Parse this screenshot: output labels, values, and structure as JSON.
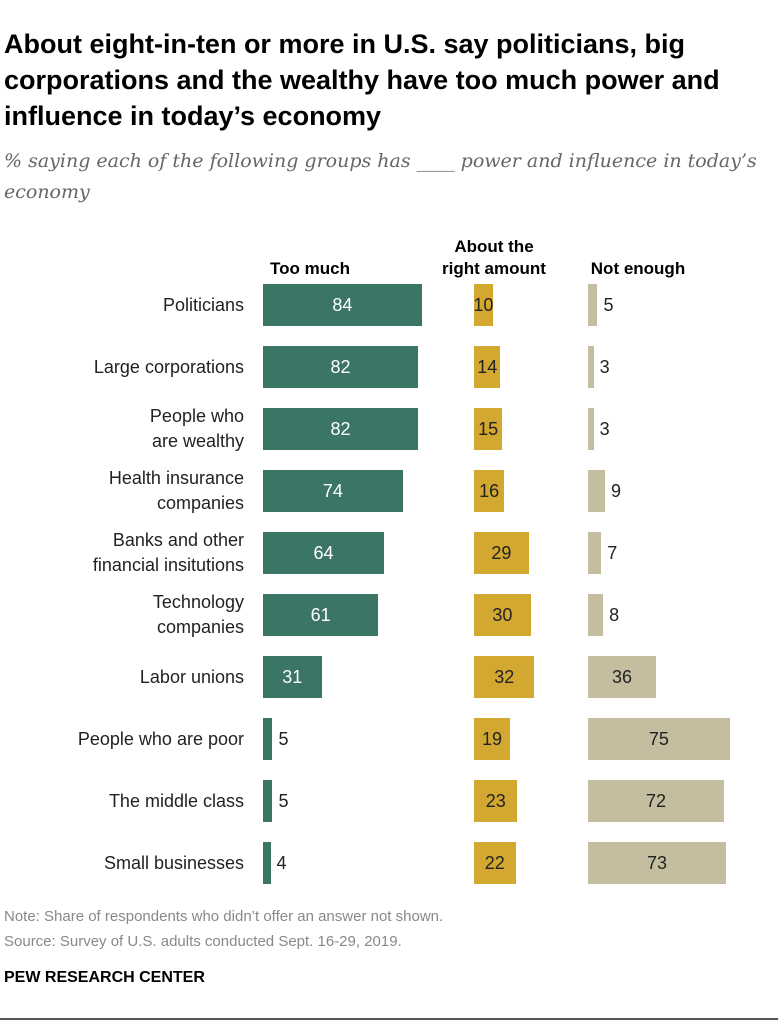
{
  "chart_data": {
    "type": "bar",
    "title": "About eight-in-ten or more in U.S. say politicians, big corporations and the wealthy have too much power and influence in today’s economy",
    "subtitle": "% saying each of the following groups has ____ power and influence in today’s economy",
    "categories": [
      "Politicians",
      "Large corporations",
      "People who are wealthy",
      "Health insurance companies",
      "Banks and other financial insitutions",
      "Technology companies",
      "Labor unions",
      "People who are poor",
      "The middle class",
      "Small businesses"
    ],
    "category_lines": [
      [
        "Politicians"
      ],
      [
        "Large corporations"
      ],
      [
        "People who",
        "are wealthy"
      ],
      [
        "Health insurance",
        "companies"
      ],
      [
        "Banks and other",
        "financial insitutions"
      ],
      [
        "Technology",
        "companies"
      ],
      [
        "Labor unions"
      ],
      [
        "People who are poor"
      ],
      [
        "The middle class"
      ],
      [
        "Small businesses"
      ]
    ],
    "series": [
      {
        "name": "Too much",
        "name_lines": [
          "Too much"
        ],
        "color": "#3a7565",
        "values": [
          84,
          82,
          82,
          74,
          64,
          61,
          31,
          5,
          5,
          4
        ]
      },
      {
        "name": "About the right amount",
        "name_lines": [
          "About the",
          "right amount"
        ],
        "color": "#d3a831",
        "values": [
          10,
          14,
          15,
          16,
          29,
          30,
          32,
          19,
          23,
          22
        ]
      },
      {
        "name": "Not enough",
        "name_lines": [
          "Not enough"
        ],
        "color": "#c4bd9f",
        "values": [
          5,
          3,
          3,
          9,
          7,
          8,
          36,
          75,
          72,
          73
        ]
      }
    ],
    "xlim": [
      0,
      100
    ]
  },
  "footer": {
    "note": "Note: Share of respondents who didn’t offer an answer not shown.",
    "source": "Source: Survey of U.S. adults conducted Sept. 16-29, 2019.",
    "brand": "PEW RESEARCH CENTER"
  }
}
